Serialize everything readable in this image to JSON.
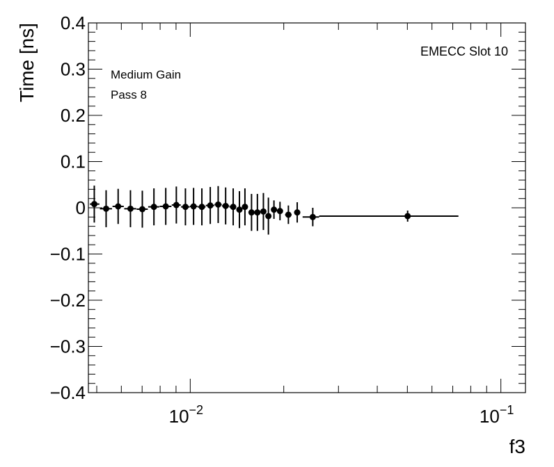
{
  "chart_data": {
    "type": "scatter",
    "title": "",
    "xlabel": "f3",
    "ylabel": "Time [ns]",
    "xscale": "log",
    "xlim": [
      0.0047,
      0.12
    ],
    "ylim": [
      -0.4,
      0.4
    ],
    "yticks": [
      {
        "value": 0.4,
        "label": "0.4"
      },
      {
        "value": 0.3,
        "label": "0.3"
      },
      {
        "value": 0.2,
        "label": "0.2"
      },
      {
        "value": 0.1,
        "label": "0.1"
      },
      {
        "value": 0.0,
        "label": "0"
      },
      {
        "value": -0.1,
        "label": "−0.1"
      },
      {
        "value": -0.2,
        "label": "−0.2"
      },
      {
        "value": -0.3,
        "label": "−0.3"
      },
      {
        "value": -0.4,
        "label": "−0.4"
      }
    ],
    "xticks": [
      {
        "value": 0.01,
        "base": "10",
        "exp": "−2"
      },
      {
        "value": 0.1,
        "base": "10",
        "exp": "−1"
      }
    ],
    "grid": false,
    "annotations": {
      "gain": "Medium Gain",
      "pass": "Pass 8",
      "slot": "EMECC Slot 10"
    },
    "points": [
      {
        "x": 0.00491,
        "xlo": 0.00475,
        "xhi": 0.0051,
        "y": 0.008,
        "err": 0.04
      },
      {
        "x": 0.00536,
        "xlo": 0.00512,
        "xhi": 0.0056,
        "y": -0.002,
        "err": 0.04
      },
      {
        "x": 0.00586,
        "xlo": 0.00562,
        "xhi": 0.00611,
        "y": 0.003,
        "err": 0.038
      },
      {
        "x": 0.00642,
        "xlo": 0.00613,
        "xhi": 0.0067,
        "y": -0.002,
        "err": 0.04
      },
      {
        "x": 0.00701,
        "xlo": 0.00672,
        "xhi": 0.0073,
        "y": -0.003,
        "err": 0.04
      },
      {
        "x": 0.00764,
        "xlo": 0.00732,
        "xhi": 0.00795,
        "y": 0.002,
        "err": 0.04
      },
      {
        "x": 0.00834,
        "xlo": 0.00797,
        "xhi": 0.0087,
        "y": 0.003,
        "err": 0.04
      },
      {
        "x": 0.00902,
        "xlo": 0.00872,
        "xhi": 0.00932,
        "y": 0.006,
        "err": 0.04
      },
      {
        "x": 0.00965,
        "xlo": 0.00934,
        "xhi": 0.00996,
        "y": 0.002,
        "err": 0.04
      },
      {
        "x": 0.01025,
        "xlo": 0.00998,
        "xhi": 0.01055,
        "y": 0.003,
        "err": 0.04
      },
      {
        "x": 0.0109,
        "xlo": 0.01057,
        "xhi": 0.0112,
        "y": 0.002,
        "err": 0.04
      },
      {
        "x": 0.0116,
        "xlo": 0.01122,
        "xhi": 0.01195,
        "y": 0.005,
        "err": 0.04
      },
      {
        "x": 0.0123,
        "xlo": 0.01197,
        "xhi": 0.01263,
        "y": 0.007,
        "err": 0.04
      },
      {
        "x": 0.013,
        "xlo": 0.01265,
        "xhi": 0.01335,
        "y": 0.004,
        "err": 0.04
      },
      {
        "x": 0.01375,
        "xlo": 0.01337,
        "xhi": 0.01405,
        "y": 0.002,
        "err": 0.04
      },
      {
        "x": 0.0144,
        "xlo": 0.01407,
        "xhi": 0.0147,
        "y": -0.004,
        "err": 0.04
      },
      {
        "x": 0.015,
        "xlo": 0.01472,
        "xhi": 0.0153,
        "y": 0.002,
        "err": 0.04
      },
      {
        "x": 0.01575,
        "xlo": 0.0154,
        "xhi": 0.01605,
        "y": -0.01,
        "err": 0.04
      },
      {
        "x": 0.01645,
        "xlo": 0.0161,
        "xhi": 0.0168,
        "y": -0.01,
        "err": 0.04
      },
      {
        "x": 0.0172,
        "xlo": 0.01685,
        "xhi": 0.01755,
        "y": -0.008,
        "err": 0.04
      },
      {
        "x": 0.01785,
        "xlo": 0.01757,
        "xhi": 0.01815,
        "y": -0.018,
        "err": 0.04
      },
      {
        "x": 0.0186,
        "xlo": 0.01825,
        "xhi": 0.01895,
        "y": -0.004,
        "err": 0.02
      },
      {
        "x": 0.01945,
        "xlo": 0.01905,
        "xhi": 0.01985,
        "y": -0.007,
        "err": 0.02
      },
      {
        "x": 0.0207,
        "xlo": 0.0202,
        "xhi": 0.0212,
        "y": -0.015,
        "err": 0.02
      },
      {
        "x": 0.0221,
        "xlo": 0.0216,
        "xhi": 0.0226,
        "y": -0.01,
        "err": 0.022
      },
      {
        "x": 0.0248,
        "xlo": 0.023,
        "xhi": 0.026,
        "y": -0.02,
        "err": 0.02
      },
      {
        "x": 0.0501,
        "xlo": 0.026,
        "xhi": 0.073,
        "y": -0.018,
        "err": 0.012
      }
    ]
  }
}
